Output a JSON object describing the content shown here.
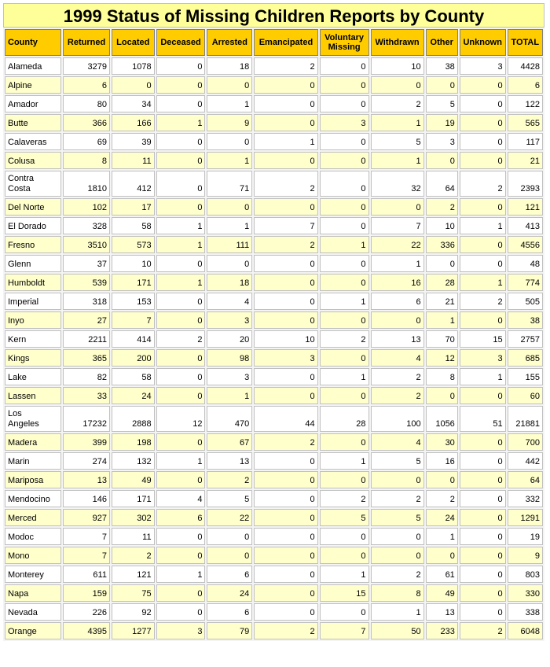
{
  "title": "1999 Status of Missing Children Reports by County",
  "columns": [
    "County",
    "Returned",
    "Located",
    "Deceased",
    "Arrested",
    "Emancipated",
    "Voluntary Missing",
    "Withdrawn",
    "Other",
    "Unknown",
    "TOTAL"
  ],
  "rows": [
    [
      "Alameda",
      "3279",
      "1078",
      "0",
      "18",
      "2",
      "0",
      "10",
      "38",
      "3",
      "4428"
    ],
    [
      "Alpine",
      "6",
      "0",
      "0",
      "0",
      "0",
      "0",
      "0",
      "0",
      "0",
      "6"
    ],
    [
      "Amador",
      "80",
      "34",
      "0",
      "1",
      "0",
      "0",
      "2",
      "5",
      "0",
      "122"
    ],
    [
      "Butte",
      "366",
      "166",
      "1",
      "9",
      "0",
      "3",
      "1",
      "19",
      "0",
      "565"
    ],
    [
      "Calaveras",
      "69",
      "39",
      "0",
      "0",
      "1",
      "0",
      "5",
      "3",
      "0",
      "117"
    ],
    [
      "Colusa",
      "8",
      "11",
      "0",
      "1",
      "0",
      "0",
      "1",
      "0",
      "0",
      "21"
    ],
    [
      "Contra Costa",
      "1810",
      "412",
      "0",
      "71",
      "2",
      "0",
      "32",
      "64",
      "2",
      "2393"
    ],
    [
      "Del Norte",
      "102",
      "17",
      "0",
      "0",
      "0",
      "0",
      "0",
      "2",
      "0",
      "121"
    ],
    [
      "El Dorado",
      "328",
      "58",
      "1",
      "1",
      "7",
      "0",
      "7",
      "10",
      "1",
      "413"
    ],
    [
      "Fresno",
      "3510",
      "573",
      "1",
      "111",
      "2",
      "1",
      "22",
      "336",
      "0",
      "4556"
    ],
    [
      "Glenn",
      "37",
      "10",
      "0",
      "0",
      "0",
      "0",
      "1",
      "0",
      "0",
      "48"
    ],
    [
      "Humboldt",
      "539",
      "171",
      "1",
      "18",
      "0",
      "0",
      "16",
      "28",
      "1",
      "774"
    ],
    [
      "Imperial",
      "318",
      "153",
      "0",
      "4",
      "0",
      "1",
      "6",
      "21",
      "2",
      "505"
    ],
    [
      "Inyo",
      "27",
      "7",
      "0",
      "3",
      "0",
      "0",
      "0",
      "1",
      "0",
      "38"
    ],
    [
      "Kern",
      "2211",
      "414",
      "2",
      "20",
      "10",
      "2",
      "13",
      "70",
      "15",
      "2757"
    ],
    [
      "Kings",
      "365",
      "200",
      "0",
      "98",
      "3",
      "0",
      "4",
      "12",
      "3",
      "685"
    ],
    [
      "Lake",
      "82",
      "58",
      "0",
      "3",
      "0",
      "1",
      "2",
      "8",
      "1",
      "155"
    ],
    [
      "Lassen",
      "33",
      "24",
      "0",
      "1",
      "0",
      "0",
      "2",
      "0",
      "0",
      "60"
    ],
    [
      "Los Angeles",
      "17232",
      "2888",
      "12",
      "470",
      "44",
      "28",
      "100",
      "1056",
      "51",
      "21881"
    ],
    [
      "Madera",
      "399",
      "198",
      "0",
      "67",
      "2",
      "0",
      "4",
      "30",
      "0",
      "700"
    ],
    [
      "Marin",
      "274",
      "132",
      "1",
      "13",
      "0",
      "1",
      "5",
      "16",
      "0",
      "442"
    ],
    [
      "Mariposa",
      "13",
      "49",
      "0",
      "2",
      "0",
      "0",
      "0",
      "0",
      "0",
      "64"
    ],
    [
      "Mendocino",
      "146",
      "171",
      "4",
      "5",
      "0",
      "2",
      "2",
      "2",
      "0",
      "332"
    ],
    [
      "Merced",
      "927",
      "302",
      "6",
      "22",
      "0",
      "5",
      "5",
      "24",
      "0",
      "1291"
    ],
    [
      "Modoc",
      "7",
      "11",
      "0",
      "0",
      "0",
      "0",
      "0",
      "1",
      "0",
      "19"
    ],
    [
      "Mono",
      "7",
      "2",
      "0",
      "0",
      "0",
      "0",
      "0",
      "0",
      "0",
      "9"
    ],
    [
      "Monterey",
      "611",
      "121",
      "1",
      "6",
      "0",
      "1",
      "2",
      "61",
      "0",
      "803"
    ],
    [
      "Napa",
      "159",
      "75",
      "0",
      "24",
      "0",
      "15",
      "8",
      "49",
      "0",
      "330"
    ],
    [
      "Nevada",
      "226",
      "92",
      "0",
      "6",
      "0",
      "0",
      "1",
      "13",
      "0",
      "338"
    ],
    [
      "Orange",
      "4395",
      "1277",
      "3",
      "79",
      "2",
      "7",
      "50",
      "233",
      "2",
      "6048"
    ]
  ],
  "colors": {
    "title_bg": "#ffff99",
    "header_bg": "#ffcc00",
    "row_odd": "#ffffff",
    "row_even": "#ffffcc"
  }
}
